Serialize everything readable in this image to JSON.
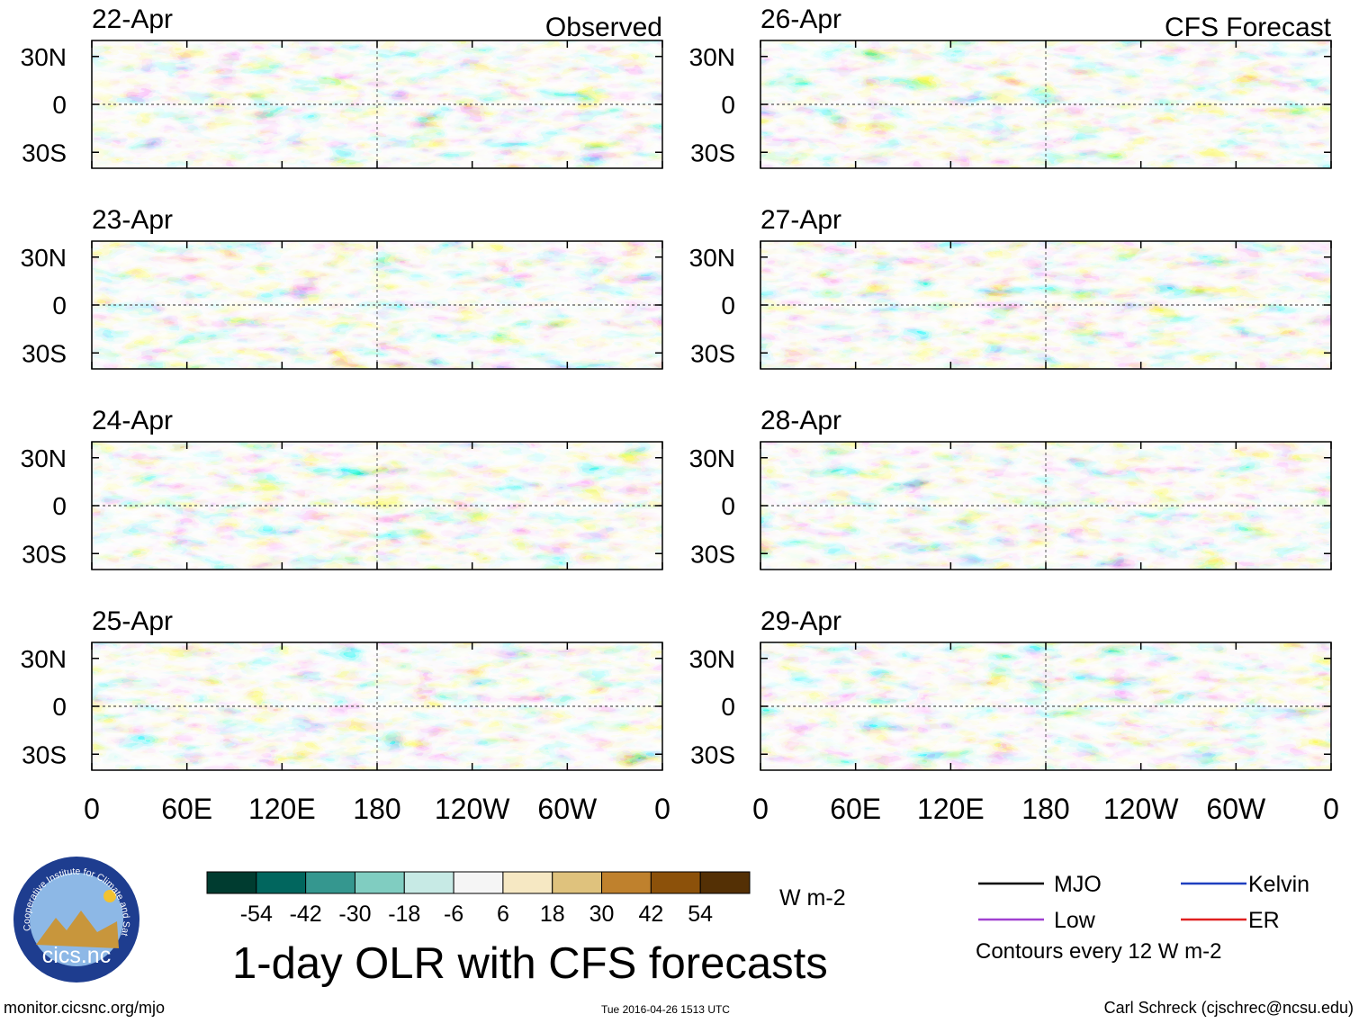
{
  "title": "1-day OLR with CFS forecasts",
  "footer": {
    "left": "monitor.cicsnc.org/mjo",
    "center": "Tue 2016-04-26 1513 UTC",
    "right": "Carl Schreck (cjschrec@ncsu.edu)"
  },
  "logo": {
    "ring_text": "Cooperative Institute for Climate and Satellites",
    "name": "cics.nc"
  },
  "column_titles": {
    "observed": "Observed",
    "forecast": "CFS Forecast"
  },
  "chart_data": {
    "type": "heatmap",
    "variable": "OLR anomaly",
    "units": "W m-2",
    "lat_range": [
      -40,
      40
    ],
    "lon_range": [
      0,
      360
    ],
    "y_ticks": [
      "30N",
      "0",
      "30S"
    ],
    "x_ticks": [
      "0",
      "60E",
      "120E",
      "180",
      "120W",
      "60W",
      "0"
    ],
    "panels": [
      {
        "date": "22-Apr",
        "type": "observed"
      },
      {
        "date": "23-Apr",
        "type": "observed"
      },
      {
        "date": "24-Apr",
        "type": "observed"
      },
      {
        "date": "25-Apr",
        "type": "observed"
      },
      {
        "date": "26-Apr",
        "type": "forecast"
      },
      {
        "date": "27-Apr",
        "type": "forecast"
      },
      {
        "date": "28-Apr",
        "type": "forecast"
      },
      {
        "date": "29-Apr",
        "type": "forecast"
      }
    ],
    "colorbar": {
      "tick_labels": [
        "-54",
        "-42",
        "-30",
        "-18",
        "-6",
        "6",
        "18",
        "30",
        "42",
        "54"
      ],
      "colors": [
        "#003c30",
        "#01665e",
        "#35978f",
        "#80cdc1",
        "#c7eae5",
        "#f5f5f5",
        "#f6e8c3",
        "#dfc27d",
        "#bf812d",
        "#8c510a",
        "#543005"
      ],
      "unit": "W m-2"
    },
    "legend": [
      {
        "label": "MJO",
        "color": "#000000"
      },
      {
        "label": "Kelvin",
        "color": "#1f3fbf"
      },
      {
        "label": "Low",
        "color": "#a040d0"
      },
      {
        "label": "ER",
        "color": "#e02020"
      }
    ],
    "contour_note": "Contours every 12 W m-2"
  }
}
